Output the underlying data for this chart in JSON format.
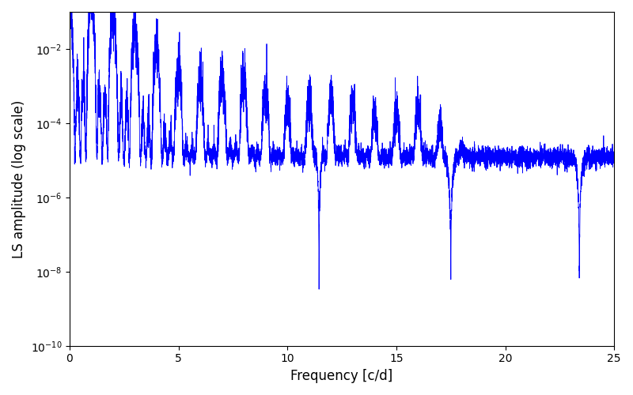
{
  "title": "",
  "xlabel": "Frequency [c/d]",
  "ylabel": "LS amplitude (log scale)",
  "xlim": [
    0,
    25
  ],
  "ylim_log": [
    -10,
    -1
  ],
  "line_color": "#0000FF",
  "line_width": 0.6,
  "freq_max": 25.0,
  "n_points": 8000,
  "seed": 42,
  "background_color": "#ffffff",
  "figsize": [
    8.0,
    5.0
  ],
  "dpi": 100
}
